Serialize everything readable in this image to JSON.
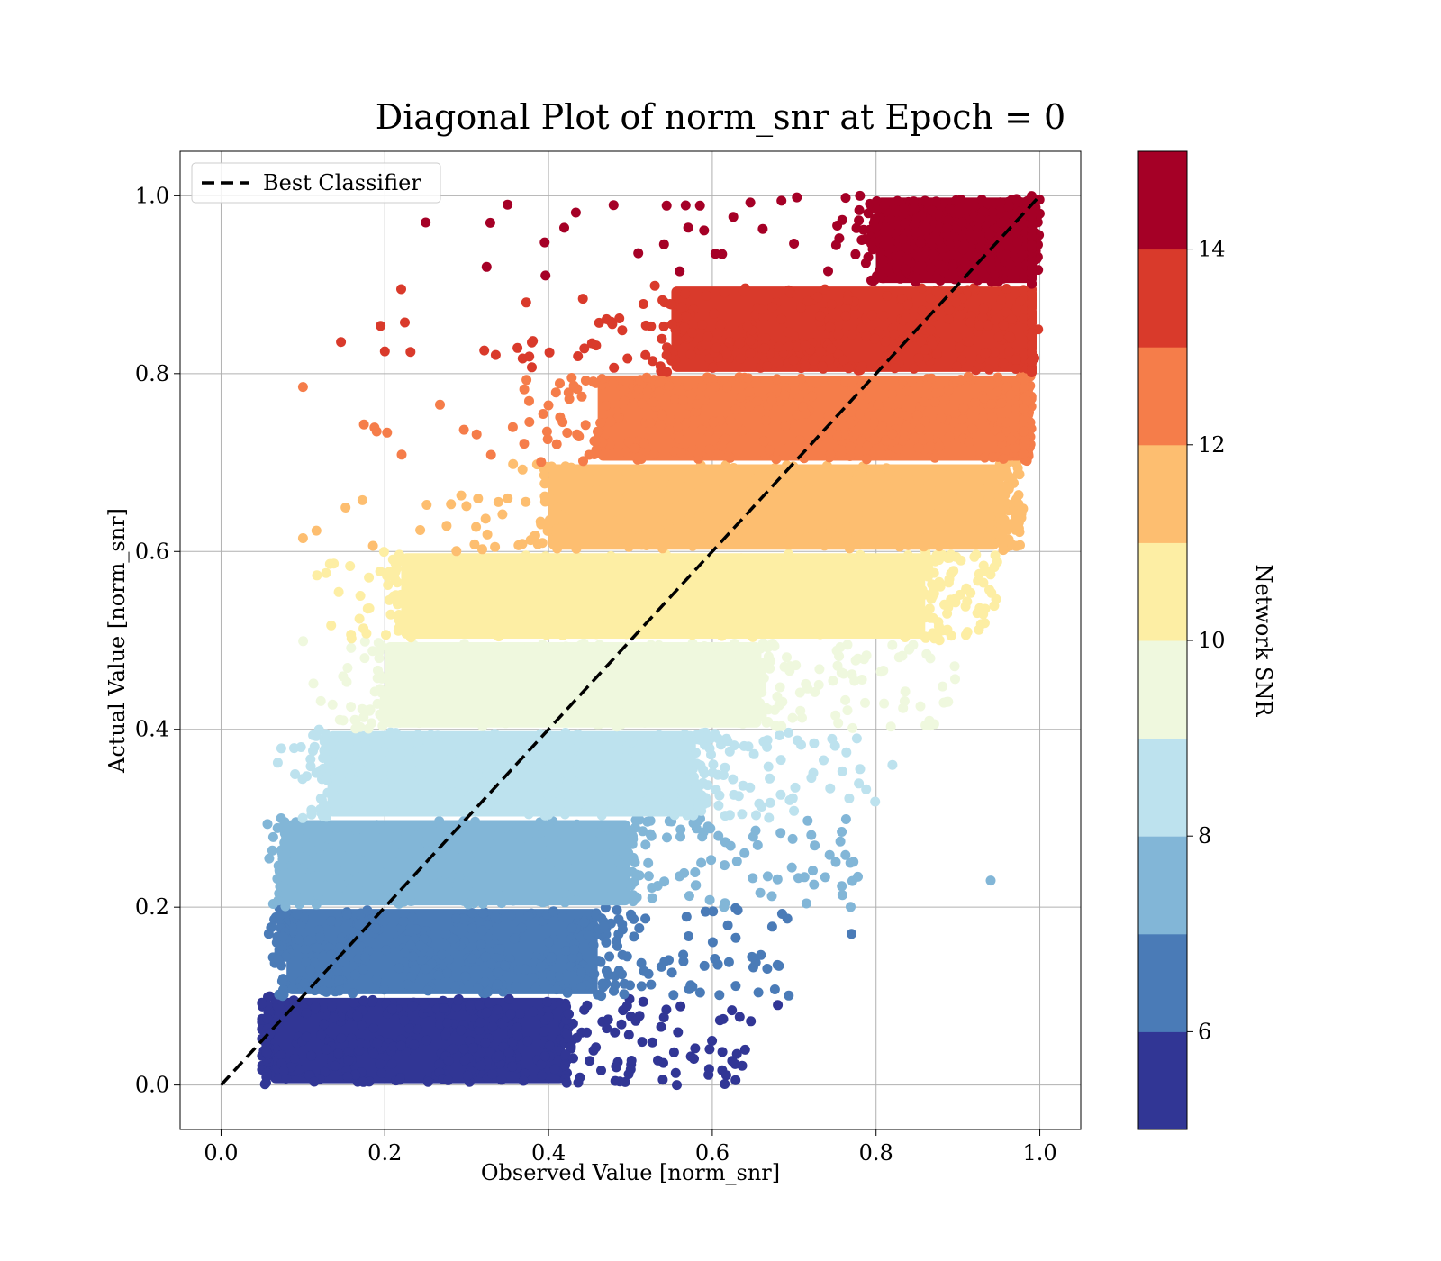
{
  "chart_data": {
    "type": "scatter",
    "title": "Diagonal Plot of norm_snr at Epoch = 0",
    "xlabel": "Observed Value [norm_snr]",
    "ylabel": "Actual Value [norm_snr]",
    "xlim": [
      -0.05,
      1.05
    ],
    "ylim": [
      -0.05,
      1.05
    ],
    "xticks": [
      0.0,
      0.2,
      0.4,
      0.6,
      0.8,
      1.0
    ],
    "xtick_labels": [
      "0.0",
      "0.2",
      "0.4",
      "0.6",
      "0.8",
      "1.0"
    ],
    "yticks": [
      0.0,
      0.2,
      0.4,
      0.6,
      0.8,
      1.0
    ],
    "ytick_labels": [
      "0.0",
      "0.2",
      "0.4",
      "0.6",
      "0.8",
      "1.0"
    ],
    "grid": true,
    "legend": {
      "placement": "top-left",
      "entries": [
        {
          "label": "Best Classifier",
          "style": "dashed",
          "color": "#000000"
        }
      ]
    },
    "reference_line": {
      "label": "Best Classifier",
      "x": [
        0.0,
        1.0
      ],
      "y": [
        0.0,
        1.0
      ],
      "color": "#000000",
      "style": "dashed"
    },
    "colorbar": {
      "label": "Network SNR",
      "min": 5,
      "max": 15,
      "ticks": [
        6,
        8,
        10,
        12,
        14
      ],
      "tick_labels": [
        "6",
        "8",
        "10",
        "12",
        "14"
      ],
      "colors": [
        "#313695",
        "#4a7bb7",
        "#82b6d7",
        "#bde2ee",
        "#eff8de",
        "#fdeea4",
        "#fdbe70",
        "#f57d4a",
        "#d93a2b",
        "#a50026"
      ]
    },
    "bands": [
      {
        "snr_bin": [
          5,
          6
        ],
        "y_range": [
          0.0,
          0.1
        ],
        "color": "#313695",
        "core_x": [
          0.06,
          0.42
        ],
        "scatter_x_max": 0.66
      },
      {
        "snr_bin": [
          6,
          7
        ],
        "y_range": [
          0.1,
          0.2
        ],
        "color": "#4a7bb7",
        "core_x": [
          0.08,
          0.46
        ],
        "scatter_x_max": 0.7
      },
      {
        "snr_bin": [
          7,
          8
        ],
        "y_range": [
          0.2,
          0.3
        ],
        "color": "#82b6d7",
        "core_x": [
          0.08,
          0.5
        ],
        "scatter_x_max": 0.78
      },
      {
        "snr_bin": [
          8,
          9
        ],
        "y_range": [
          0.3,
          0.4
        ],
        "color": "#bde2ee",
        "core_x": [
          0.13,
          0.58
        ],
        "scatter_x_max": 0.8
      },
      {
        "snr_bin": [
          9,
          10
        ],
        "y_range": [
          0.4,
          0.5
        ],
        "color": "#eff8de",
        "core_x": [
          0.2,
          0.66
        ],
        "scatter_x_max": 0.9
      },
      {
        "snr_bin": [
          10,
          11
        ],
        "y_range": [
          0.5,
          0.6
        ],
        "color": "#fdeea4",
        "core_x": [
          0.22,
          0.86
        ],
        "scatter_x_max": 0.95
      },
      {
        "snr_bin": [
          11,
          12
        ],
        "y_range": [
          0.6,
          0.7
        ],
        "color": "#fdbe70",
        "core_x": [
          0.4,
          0.95
        ],
        "scatter_x_max": 0.98
      },
      {
        "snr_bin": [
          12,
          13
        ],
        "y_range": [
          0.7,
          0.8
        ],
        "color": "#f57d4a",
        "core_x": [
          0.46,
          0.98
        ],
        "scatter_x_max": 0.99
      },
      {
        "snr_bin": [
          13,
          14
        ],
        "y_range": [
          0.8,
          0.9
        ],
        "color": "#d93a2b",
        "core_x": [
          0.55,
          0.99
        ],
        "scatter_x_max": 0.99
      },
      {
        "snr_bin": [
          14,
          15
        ],
        "y_range": [
          0.9,
          1.0
        ],
        "color": "#a50026",
        "core_x": [
          0.8,
          0.99
        ],
        "scatter_x_max": 0.99
      }
    ],
    "notable_points": [
      {
        "x": 0.1,
        "y": 0.785,
        "color": "#f57d4a"
      },
      {
        "x": 0.1,
        "y": 0.615,
        "color": "#fdbe70"
      },
      {
        "x": 0.94,
        "y": 0.23,
        "color": "#82b6d7"
      },
      {
        "x": 0.82,
        "y": 0.36,
        "color": "#bde2ee"
      },
      {
        "x": 0.68,
        "y": 0.09,
        "color": "#313695"
      },
      {
        "x": 0.63,
        "y": 0.035,
        "color": "#313695"
      },
      {
        "x": 0.77,
        "y": 0.17,
        "color": "#4a7bb7"
      },
      {
        "x": 0.2,
        "y": 0.825,
        "color": "#d93a2b"
      },
      {
        "x": 0.25,
        "y": 0.97,
        "color": "#a50026"
      },
      {
        "x": 0.35,
        "y": 0.99,
        "color": "#a50026"
      },
      {
        "x": 0.22,
        "y": 0.895,
        "color": "#d93a2b"
      },
      {
        "x": 0.19,
        "y": 0.735,
        "color": "#f57d4a"
      }
    ]
  }
}
